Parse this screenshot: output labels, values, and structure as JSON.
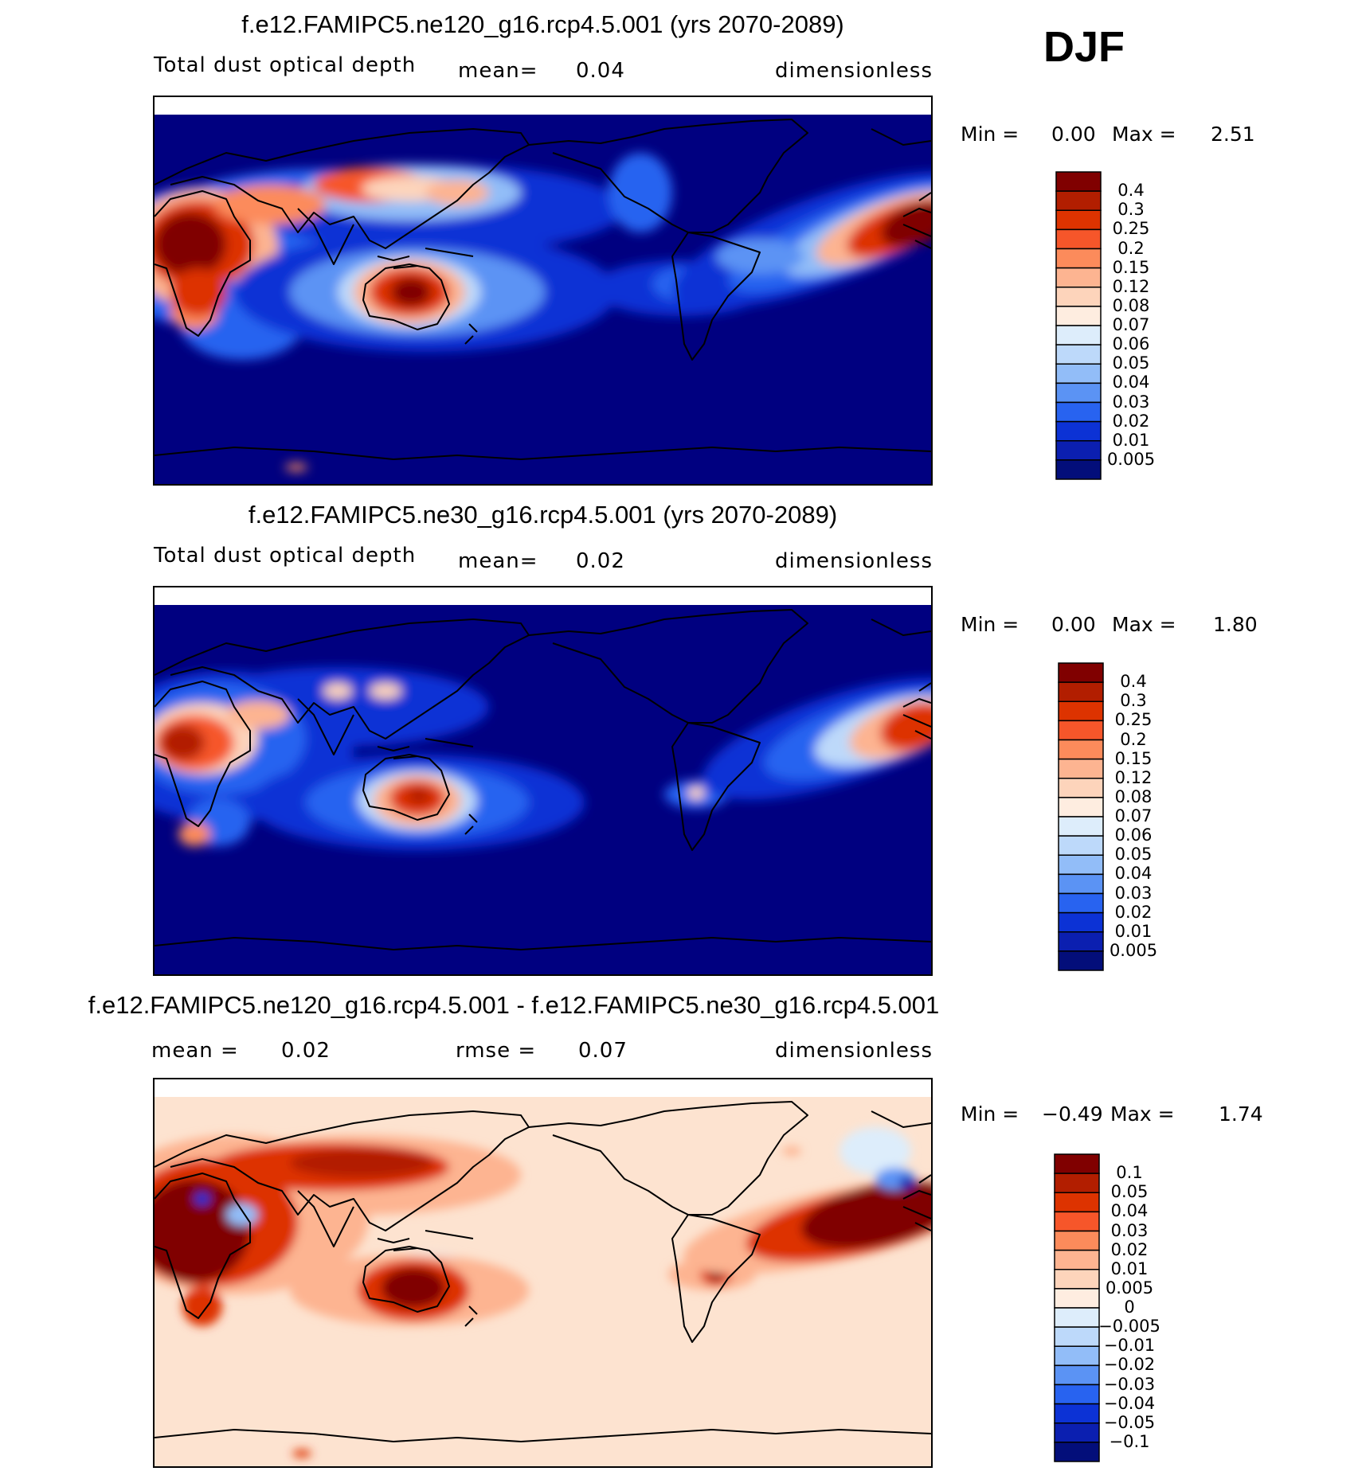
{
  "season": "DJF",
  "colors": {
    "ocean_low": "#000080",
    "land_line": "#000000",
    "diff_background": "#FDE3D0"
  },
  "panels": [
    {
      "title": "f.e12.FAMIPC5.ne120_g16.rcp4.5.001 (yrs 2070-2089)",
      "variable": "Total dust optical depth",
      "mean_label": "mean=",
      "mean_value": "0.04",
      "units": "dimensionless",
      "min_label": "Min =",
      "min_value": "0.00",
      "max_label": "Max =",
      "max_value": "2.51"
    },
    {
      "title": "f.e12.FAMIPC5.ne30_g16.rcp4.5.001 (yrs 2070-2089)",
      "variable": "Total dust optical depth",
      "mean_label": "mean=",
      "mean_value": "0.02",
      "units": "dimensionless",
      "min_label": "Min =",
      "min_value": "0.00",
      "max_label": "Max =",
      "max_value": "1.80"
    },
    {
      "title": "f.e12.FAMIPC5.ne120_g16.rcp4.5.001 - f.e12.FAMIPC5.ne30_g16.rcp4.5.001",
      "mean_label": "mean =",
      "mean_value": "0.02",
      "rmse_label": "rmse =",
      "rmse_value": "0.07",
      "units": "dimensionless",
      "min_label": "Min =",
      "min_value": "−0.49",
      "max_label": "Max =",
      "max_value": "1.74"
    }
  ],
  "chart_data": [
    {
      "type": "heatmap",
      "title": "f.e12.FAMIPC5.ne120_g16.rcp4.5.001 (yrs 2070-2089)",
      "variable": "Total dust optical depth",
      "units": "dimensionless",
      "mean": 0.04,
      "min": 0.0,
      "max": 2.51,
      "colorbar_levels": [
        "0.4",
        "0.3",
        "0.25",
        "0.2",
        "0.15",
        "0.12",
        "0.08",
        "0.07",
        "0.06",
        "0.05",
        "0.04",
        "0.03",
        "0.02",
        "0.01",
        "0.005"
      ],
      "colorbar_colors": [
        "#800000",
        "#B21E00",
        "#DD3300",
        "#F6562A",
        "#FC8B5B",
        "#FDB491",
        "#FDD4BB",
        "#FEEDE0",
        "#DDEDFB",
        "#BDD9FA",
        "#92BDF8",
        "#5B93F4",
        "#2863F0",
        "#0C32D5",
        "#0B1FB0",
        "#030E7A"
      ]
    },
    {
      "type": "heatmap",
      "title": "f.e12.FAMIPC5.ne30_g16.rcp4.5.001 (yrs 2070-2089)",
      "variable": "Total dust optical depth",
      "units": "dimensionless",
      "mean": 0.02,
      "min": 0.0,
      "max": 1.8,
      "colorbar_levels": [
        "0.4",
        "0.3",
        "0.25",
        "0.2",
        "0.15",
        "0.12",
        "0.08",
        "0.07",
        "0.06",
        "0.05",
        "0.04",
        "0.03",
        "0.02",
        "0.01",
        "0.005"
      ],
      "colorbar_colors": [
        "#800000",
        "#B21E00",
        "#DD3300",
        "#F6562A",
        "#FC8B5B",
        "#FDB491",
        "#FDD4BB",
        "#FEEDE0",
        "#DDEDFB",
        "#BDD9FA",
        "#92BDF8",
        "#5B93F4",
        "#2863F0",
        "#0C32D5",
        "#0B1FB0",
        "#030E7A"
      ]
    },
    {
      "type": "heatmap",
      "title": "f.e12.FAMIPC5.ne120_g16.rcp4.5.001 - f.e12.FAMIPC5.ne30_g16.rcp4.5.001",
      "units": "dimensionless",
      "mean": 0.02,
      "rmse": 0.07,
      "min": -0.49,
      "max": 1.74,
      "colorbar_levels": [
        "0.1",
        "0.05",
        "0.04",
        "0.03",
        "0.02",
        "0.01",
        "0.005",
        "0",
        "−0.005",
        "−0.01",
        "−0.02",
        "−0.03",
        "−0.04",
        "−0.05",
        "−0.1"
      ],
      "colorbar_colors": [
        "#800000",
        "#B21E00",
        "#DD3300",
        "#F6562A",
        "#FC8B5B",
        "#FDB491",
        "#FDD4BB",
        "#FEEDE0",
        "#DDEDFB",
        "#BDD9FA",
        "#92BDF8",
        "#5B93F4",
        "#2863F0",
        "#0C32D5",
        "#0B1FB0",
        "#030E7A"
      ]
    }
  ]
}
